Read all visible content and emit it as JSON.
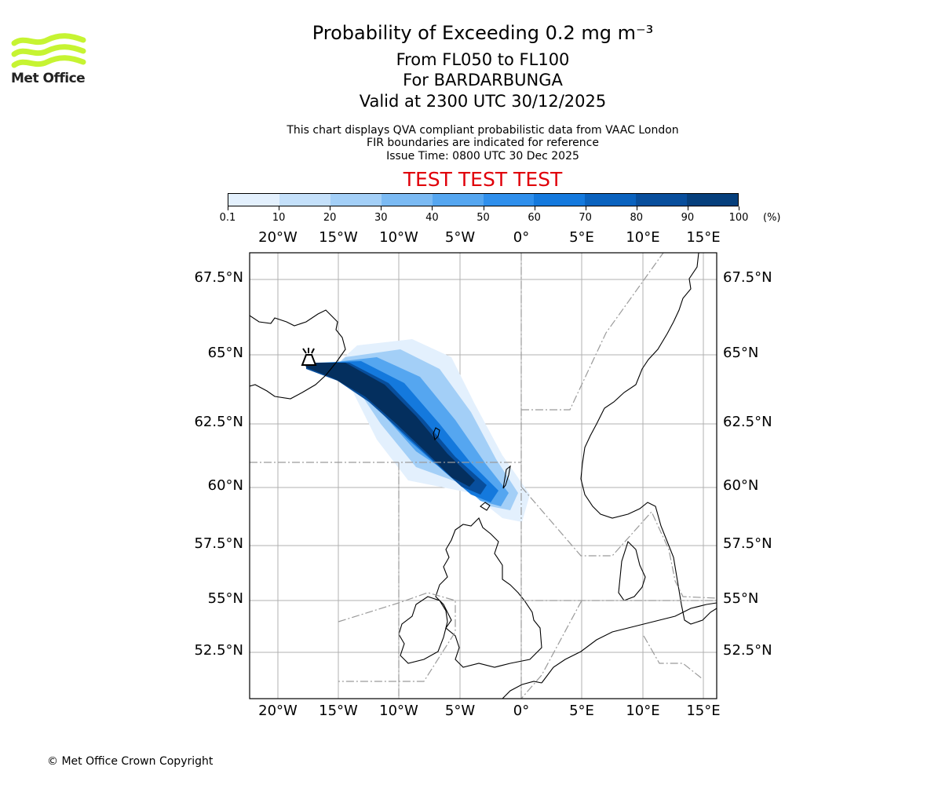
{
  "header": {
    "logo_text": "Met Office",
    "title": "Probability of Exceeding 0.2 mg m⁻³",
    "level_range": "From FL050 to FL100",
    "volcano_line": "For BARDARBUNGA",
    "valid_time": "Valid at 2300 UTC 30/12/2025",
    "note_1": "This chart displays QVA compliant probabilistic data from VAAC London",
    "note_2": "FIR boundaries are indicated for reference",
    "issue_time": "Issue Time: 0800 UTC 30 Dec 2025",
    "banner": "TEST TEST TEST",
    "banner_color": "#e0000a"
  },
  "colorbar": {
    "unit": "(%)",
    "ticks": [
      "0.1",
      "10",
      "20",
      "30",
      "40",
      "50",
      "60",
      "70",
      "80",
      "90",
      "100"
    ],
    "colors": [
      "#e3f0fd",
      "#c4e0fa",
      "#a3cff7",
      "#7bbaf3",
      "#55a6f0",
      "#2f8fec",
      "#1479dd",
      "#0a62be",
      "#084e9c",
      "#063f7c",
      "#042f5e"
    ]
  },
  "map": {
    "lon_labels": [
      "20°W",
      "15°W",
      "10°W",
      "5°W",
      "0°",
      "5°E",
      "10°E",
      "15°E"
    ],
    "lat_labels": [
      "67.5°N",
      "65°N",
      "62.5°N",
      "60°N",
      "57.5°N",
      "55°N",
      "52.5°N"
    ],
    "source_volcano": "BARDARBUNGA",
    "plume_probability_band_max": "90-100%"
  },
  "footer": {
    "copyright": "© Met Office Crown Copyright"
  }
}
